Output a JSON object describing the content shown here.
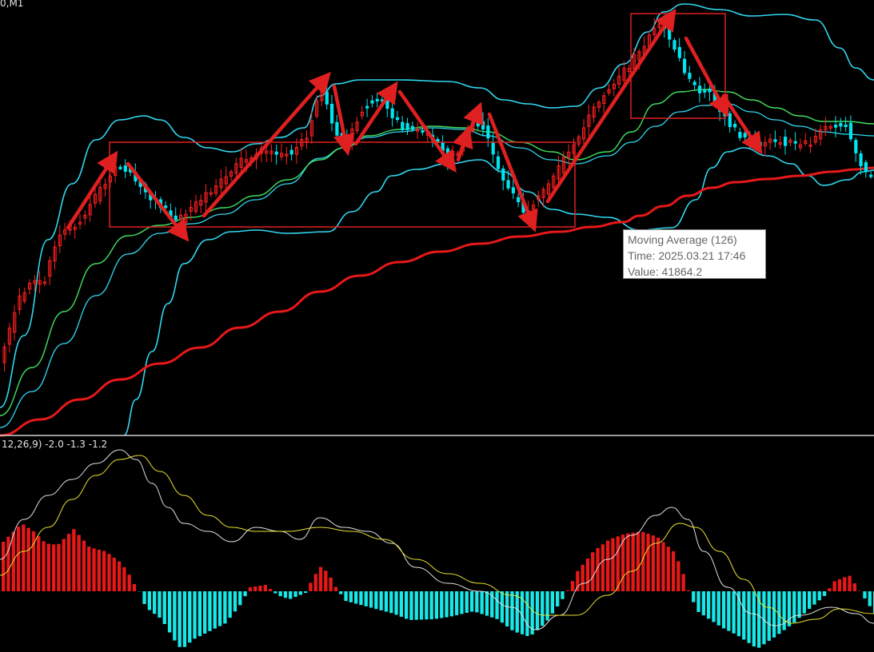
{
  "main": {
    "corner_label": "0,M1"
  },
  "macd": {
    "label": "12,26,9) -2.0 -1.3 -1.2"
  },
  "tooltip": {
    "line1": "Moving Average (126)",
    "line2": "Time: 2025.03.21 17:46",
    "line3": "Value: 41864.2"
  },
  "colors": {
    "background": "#000000",
    "bull_candle": "#ff2020",
    "bear_candle": "#00e5f0",
    "bollinger": "#30d8f0",
    "ma_short": "#40e060",
    "ma_long": "#e81818",
    "annotation": "#e02020",
    "macd_pos": "#e81818",
    "macd_neg": "#18e8e8",
    "macd_line": "#e0e0e0",
    "signal_line": "#e8e030"
  },
  "chart_data": [
    {
      "type": "line",
      "panel": "price",
      "series": [
        {
          "name": "Moving Average (126)",
          "values_approx": [
            [
              0,
              40920
            ],
            [
              100,
              41120
            ],
            [
              200,
              41305
            ],
            [
              300,
              41450
            ],
            [
              400,
              41600
            ],
            [
              500,
              41710
            ],
            [
              600,
              41790
            ],
            [
              700,
              41850
            ],
            [
              779,
              41864
            ],
            [
              800,
              41925
            ],
            [
              900,
              42020
            ],
            [
              1000,
              42055
            ],
            [
              1093,
              42075
            ]
          ]
        }
      ],
      "annotation": {
        "time": "2025.03.21 17:46",
        "value": 41864.2
      }
    },
    {
      "type": "bar",
      "panel": "macd",
      "values": [
        -2.0,
        -1.3,
        -1.2
      ]
    }
  ]
}
